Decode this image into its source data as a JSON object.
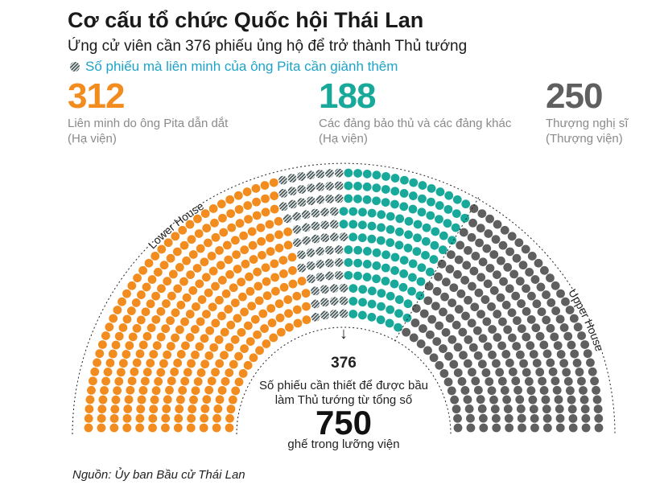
{
  "title": "Cơ cấu tổ chức Quốc hội Thái Lan",
  "subtitle": "Ứng cử viên cần 376 phiếu ủng hộ để trở thành Thủ tướng",
  "legend_text": "Số phiếu mà liên minh của ông Pita cần giành thêm",
  "stats": [
    {
      "value": "312",
      "line1": "Liên minh do ông Pita dẫn dắt",
      "line2": "(Hạ viện)",
      "color": "#f28c1e"
    },
    {
      "value": "188",
      "line1": "Các đảng bảo thủ và các đảng khác",
      "line2": "(Hạ viện)",
      "color": "#18a99a"
    },
    {
      "value": "250",
      "line1": "Thượng nghị sĩ",
      "line2": "(Thượng viện)",
      "color": "#5f5f5f"
    }
  ],
  "arc_labels": {
    "lower": "Lower House",
    "upper": "Upper House"
  },
  "center": {
    "arrow": "↓",
    "threshold": "376",
    "line1": "Số phiếu cần thiết để được bầu",
    "line2": "làm Thủ tướng từ tổng số",
    "total": "750",
    "line3": "ghế trong lưỡng viện"
  },
  "source": "Nguồn: Ủy ban Bầu cử Thái Lan",
  "chart_data": {
    "type": "parliament",
    "total_seats": 750,
    "majority_threshold": 376,
    "series": [
      {
        "name": "Liên minh do ông Pita dẫn dắt",
        "chamber": "Lower House",
        "value": 312,
        "color": "#f28c1e"
      },
      {
        "name": "Số phiếu mà liên minh của ông Pita cần giành thêm",
        "chamber": "Lower House",
        "value": 64,
        "color": "#4f5b5e",
        "pattern": "hatched"
      },
      {
        "name": "Các đảng bảo thủ và các đảng khác",
        "chamber": "Lower House",
        "value": 124,
        "color": "#18a99a"
      },
      {
        "name": "Thượng nghị sĩ",
        "chamber": "Upper House",
        "value": 250,
        "color": "#5f5f5f"
      }
    ]
  }
}
